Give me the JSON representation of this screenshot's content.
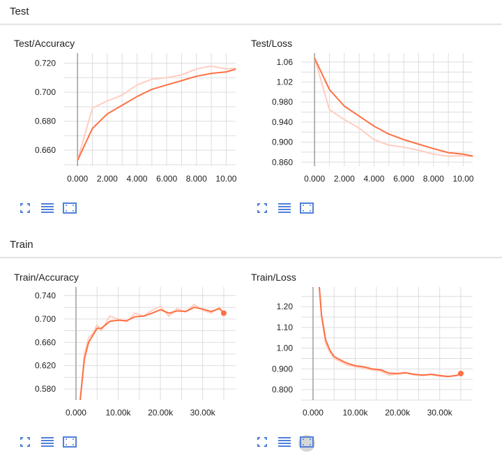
{
  "sections": {
    "test": {
      "title": "Test"
    },
    "train": {
      "title": "Train"
    }
  },
  "icons": {
    "expand": "expand-icon",
    "data_selector": "data-list-icon",
    "fit_domain": "fit-domain-icon"
  },
  "colors": {
    "smoothed_line": "#ff7043",
    "raw_line": "#ffcdbf",
    "grid": "#dddddd",
    "zero_axis": "#9e9e9e",
    "icon_blue": "#4f7fd9"
  },
  "chart_data": [
    {
      "id": "test-accuracy",
      "type": "line",
      "title": "Test/Accuracy",
      "xlabel": "",
      "ylabel": "",
      "xlim": [
        -0.9,
        11.2
      ],
      "ylim": [
        0.649,
        0.727
      ],
      "xticks": [
        0,
        2,
        4,
        6,
        8,
        10
      ],
      "xtick_labels": [
        "0.000",
        "2.000",
        "4.000",
        "6.000",
        "8.000",
        "10.00"
      ],
      "yticks": [
        0.66,
        0.68,
        0.7,
        0.72
      ],
      "ytick_labels": [
        "0.660",
        "0.680",
        "0.700",
        "0.720"
      ],
      "grid": true,
      "x": [
        0,
        1,
        2,
        3,
        4,
        5,
        6,
        7,
        8,
        9,
        10,
        11
      ],
      "series": [
        {
          "role": "raw",
          "values": [
            0.653,
            0.689,
            0.694,
            0.698,
            0.705,
            0.709,
            0.71,
            0.712,
            0.716,
            0.718,
            0.716,
            0.717
          ]
        },
        {
          "role": "smoothed",
          "values": [
            0.653,
            0.675,
            0.685,
            0.691,
            0.697,
            0.702,
            0.705,
            0.708,
            0.711,
            0.713,
            0.714,
            0.717
          ]
        }
      ]
    },
    {
      "id": "test-loss",
      "type": "line",
      "title": "Test/Loss",
      "xlabel": "",
      "ylabel": "",
      "xlim": [
        -0.9,
        11.2
      ],
      "ylim": [
        0.852,
        1.078
      ],
      "xticks": [
        0,
        2,
        4,
        6,
        8,
        10
      ],
      "xtick_labels": [
        "0.000",
        "2.000",
        "4.000",
        "6.000",
        "8.000",
        "10.00"
      ],
      "yticks": [
        0.86,
        0.9,
        0.94,
        0.98,
        1.02,
        1.06
      ],
      "ytick_labels": [
        "0.860",
        "0.900",
        "0.940",
        "0.980",
        "1.02",
        "1.06"
      ],
      "grid": true,
      "x": [
        0,
        1,
        2,
        3,
        4,
        5,
        6,
        7,
        8,
        9,
        10,
        11
      ],
      "series": [
        {
          "role": "raw",
          "values": [
            1.068,
            0.965,
            0.945,
            0.928,
            0.905,
            0.894,
            0.89,
            0.884,
            0.876,
            0.872,
            0.873,
            0.87
          ]
        },
        {
          "role": "smoothed",
          "values": [
            1.068,
            1.005,
            0.972,
            0.952,
            0.932,
            0.916,
            0.905,
            0.896,
            0.887,
            0.879,
            0.876,
            0.87
          ]
        }
      ]
    },
    {
      "id": "train-accuracy",
      "type": "line",
      "title": "Train/Accuracy",
      "xlabel": "",
      "ylabel": "",
      "xlim": [
        -2800,
        39800
      ],
      "ylim": [
        0.561,
        0.755
      ],
      "xticks": [
        0,
        10000,
        20000,
        30000
      ],
      "xtick_labels": [
        "0.000",
        "10.00k",
        "20.00k",
        "30.00k"
      ],
      "yticks": [
        0.58,
        0.62,
        0.66,
        0.7,
        0.74
      ],
      "ytick_labels": [
        "0.580",
        "0.620",
        "0.660",
        "0.700",
        "0.740"
      ],
      "grid": true,
      "x": [
        1000,
        2000,
        3000,
        4000,
        5000,
        6000,
        8000,
        10000,
        12000,
        14000,
        16000,
        18000,
        20000,
        22000,
        24000,
        26000,
        28000,
        30000,
        32000,
        34000,
        35000
      ],
      "series": [
        {
          "role": "raw",
          "values": [
            0.561,
            0.64,
            0.668,
            0.675,
            0.69,
            0.68,
            0.705,
            0.7,
            0.695,
            0.71,
            0.705,
            0.715,
            0.722,
            0.705,
            0.718,
            0.712,
            0.725,
            0.715,
            0.71,
            0.72,
            0.708
          ]
        },
        {
          "role": "smoothed",
          "values": [
            0.561,
            0.632,
            0.66,
            0.672,
            0.684,
            0.684,
            0.696,
            0.698,
            0.697,
            0.704,
            0.705,
            0.71,
            0.716,
            0.71,
            0.714,
            0.713,
            0.72,
            0.717,
            0.713,
            0.718,
            0.71
          ]
        }
      ]
    },
    {
      "id": "train-loss",
      "type": "line",
      "title": "Train/Loss",
      "xlabel": "",
      "ylabel": "",
      "xlim": [
        -2800,
        39800
      ],
      "ylim": [
        0.75,
        1.295
      ],
      "xticks": [
        0,
        10000,
        20000,
        30000
      ],
      "xtick_labels": [
        "0.000",
        "10.00k",
        "20.00k",
        "30.00k"
      ],
      "yticks": [
        0.8,
        0.9,
        1.0,
        1.1,
        1.2
      ],
      "ytick_labels": [
        "0.800",
        "0.900",
        "1.00",
        "1.10",
        "1.20"
      ],
      "grid": true,
      "x": [
        1500,
        2000,
        3000,
        4000,
        5000,
        6000,
        8000,
        10000,
        12000,
        14000,
        16000,
        18000,
        20000,
        22000,
        24000,
        26000,
        28000,
        30000,
        32000,
        34000,
        35000
      ],
      "series": [
        {
          "role": "raw",
          "values": [
            1.295,
            1.15,
            1.02,
            0.98,
            0.95,
            0.94,
            0.92,
            0.91,
            0.905,
            0.895,
            0.89,
            0.87,
            0.875,
            0.88,
            0.87,
            0.868,
            0.872,
            0.865,
            0.862,
            0.87,
            0.878
          ]
        },
        {
          "role": "smoothed",
          "values": [
            1.295,
            1.16,
            1.04,
            0.99,
            0.96,
            0.948,
            0.928,
            0.916,
            0.91,
            0.9,
            0.896,
            0.88,
            0.878,
            0.882,
            0.874,
            0.87,
            0.874,
            0.868,
            0.864,
            0.868,
            0.878
          ]
        }
      ]
    }
  ]
}
